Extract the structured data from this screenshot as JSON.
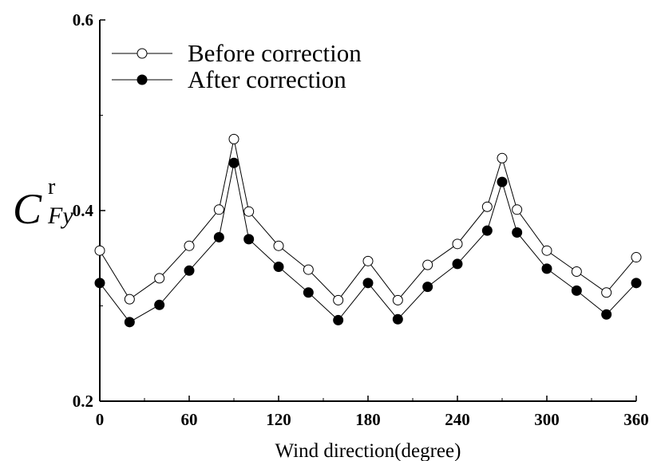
{
  "chart_data": {
    "type": "line",
    "xlabel": "Wind direction(degree)",
    "ylabel": {
      "main": "C",
      "superscript": "r",
      "subscript": "Fy"
    },
    "xlim": [
      0,
      360
    ],
    "ylim": [
      0.2,
      0.6
    ],
    "x_ticks": [
      0,
      60,
      120,
      180,
      240,
      300,
      360
    ],
    "x_tick_labels": [
      "0",
      "60",
      "120",
      "180",
      "240",
      "300",
      "360"
    ],
    "y_ticks": [
      0.2,
      0.4,
      0.6
    ],
    "y_tick_labels": [
      "0.2",
      "0.4",
      "0.6"
    ],
    "grid": false,
    "legend_position": "top-left",
    "x": [
      0,
      20,
      40,
      60,
      80,
      90,
      100,
      120,
      140,
      160,
      180,
      200,
      220,
      240,
      260,
      270,
      280,
      300,
      320,
      340,
      360
    ],
    "series": [
      {
        "name": "Before correction",
        "marker": "open-circle",
        "values": [
          0.358,
          0.307,
          0.329,
          0.363,
          0.401,
          0.475,
          0.399,
          0.363,
          0.338,
          0.306,
          0.347,
          0.306,
          0.343,
          0.365,
          0.404,
          0.455,
          0.401,
          0.358,
          0.336,
          0.314,
          0.351
        ]
      },
      {
        "name": "After correction",
        "marker": "filled-circle",
        "values": [
          0.324,
          0.283,
          0.301,
          0.337,
          0.372,
          0.45,
          0.37,
          0.341,
          0.314,
          0.285,
          0.324,
          0.286,
          0.32,
          0.344,
          0.379,
          0.43,
          0.377,
          0.339,
          0.316,
          0.291,
          0.324
        ]
      }
    ],
    "colors": {
      "line": "#000000",
      "open_fill": "#ffffff",
      "filled_fill": "#000000"
    }
  }
}
